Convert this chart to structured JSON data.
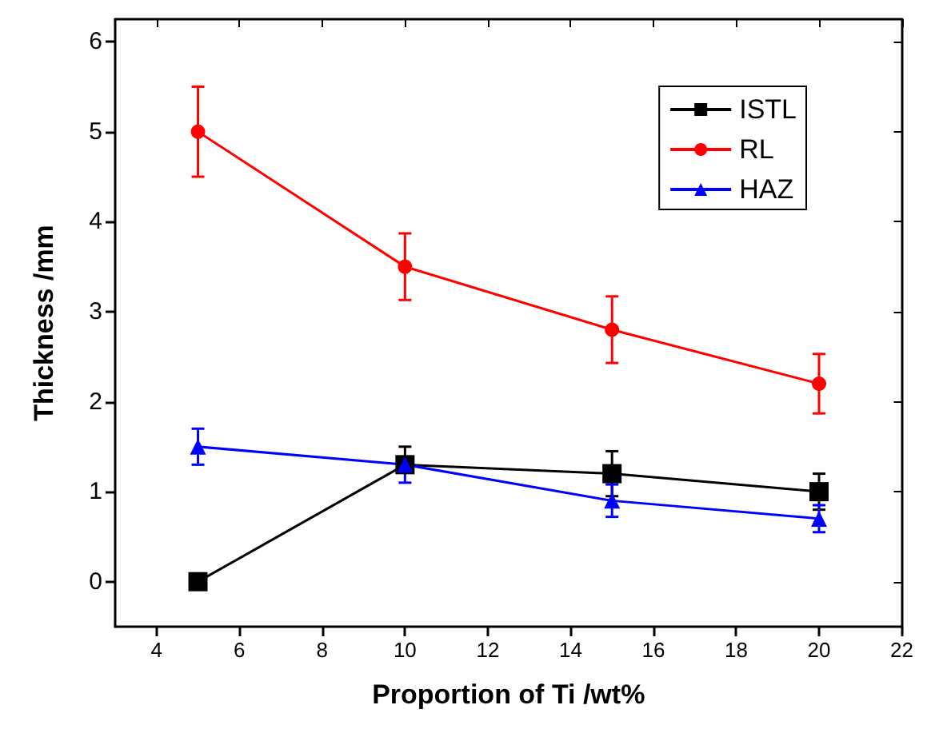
{
  "chart_data": {
    "type": "line",
    "xlabel": "Proportion of Ti /wt%",
    "ylabel": "Thickness /mm",
    "x": [
      5,
      10,
      15,
      20
    ],
    "series": [
      {
        "name": "ISTL",
        "color": "#000000",
        "marker": "square",
        "values": [
          0,
          1.3,
          1.2,
          1.0
        ],
        "errors": [
          null,
          [
            1.3,
            1.5
          ],
          0.25,
          0.2
        ]
      },
      {
        "name": "RL",
        "color": "#ff0000",
        "marker": "circle",
        "values": [
          5.0,
          3.5,
          2.8,
          2.2
        ],
        "errors": [
          0.5,
          0.37,
          0.37,
          0.33
        ]
      },
      {
        "name": "HAZ",
        "color": "#0000ff",
        "marker": "triangle",
        "values": [
          1.5,
          1.3,
          0.9,
          0.7
        ],
        "errors": [
          0.2,
          [
            1.1,
            1.3
          ],
          0.18,
          0.15
        ]
      }
    ],
    "xlim": [
      3,
      22
    ],
    "xticks": [
      4,
      6,
      8,
      10,
      12,
      14,
      16,
      18,
      20,
      22
    ],
    "ylim": [
      -0.5,
      6.25
    ],
    "yticks": [
      0,
      1,
      2,
      3,
      4,
      5,
      6
    ],
    "grid": false,
    "legend": "top right",
    "line_style": "solid"
  }
}
